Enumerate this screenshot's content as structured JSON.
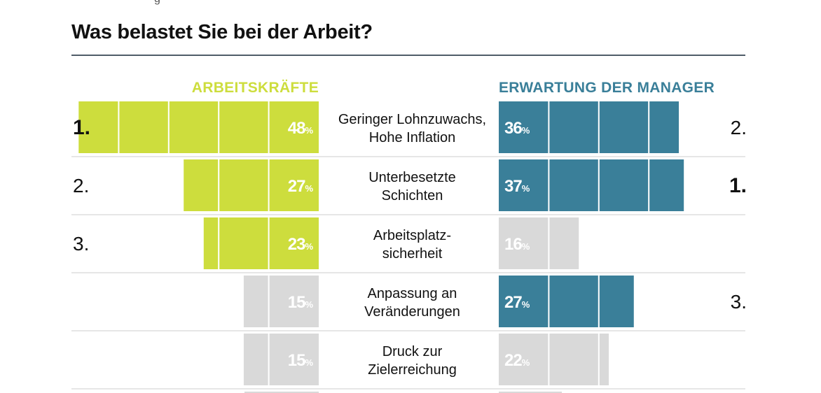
{
  "header": {
    "title": "Was belastet Sie bei der Arbeit?"
  },
  "colors": {
    "workers": "#cddd3d",
    "managers": "#3a7f99",
    "inactive": "#d9d9d9",
    "rule": "#4f5d68",
    "row_rule": "#cccccc"
  },
  "chart_data": {
    "type": "bar",
    "title": "Was belastet Sie bei der Arbeit?",
    "categories": [
      [
        "Geringer Lohnzuwachs,",
        "Hohe Inflation"
      ],
      [
        "Unterbesetzte",
        "Schichten"
      ],
      [
        "Arbeitsplatz-",
        "sicherheit"
      ],
      [
        "Anpassung an",
        "Veränderungen"
      ],
      [
        "Druck zur",
        "Zielerreichung"
      ]
    ],
    "series": [
      {
        "name": "ARBEITSKRÄFTE",
        "values": [
          48,
          27,
          23,
          15,
          15
        ],
        "ranks": [
          "1.",
          "2.",
          "3.",
          "",
          ""
        ],
        "highlighted": [
          true,
          true,
          true,
          false,
          false
        ]
      },
      {
        "name": "ERWARTUNG DER MANAGER",
        "values": [
          36,
          37,
          16,
          27,
          22
        ],
        "ranks": [
          "2.",
          "1.",
          "",
          "3.",
          ""
        ],
        "highlighted": [
          true,
          true,
          false,
          true,
          false
        ]
      }
    ],
    "value_suffix": "%",
    "top_rank_bold": "1.",
    "segment_step": 10,
    "xlim": [
      0,
      48
    ]
  }
}
